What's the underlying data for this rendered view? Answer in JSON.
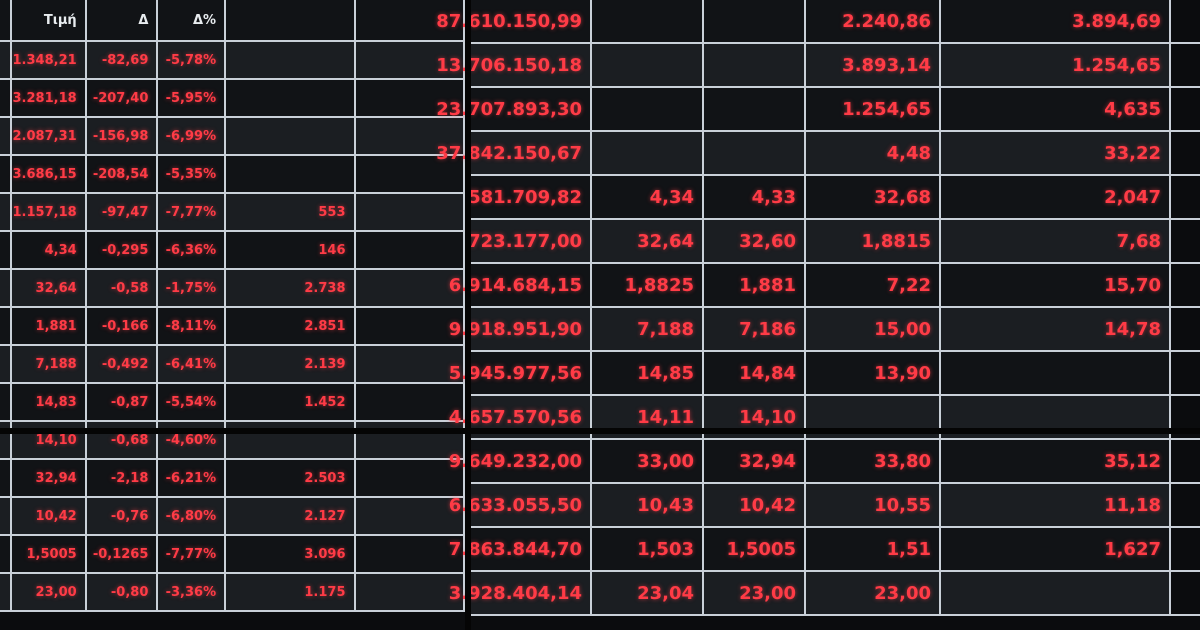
{
  "left_panel": {
    "headers": [
      "",
      "Τιμή",
      "Δ",
      "Δ%",
      "",
      ""
    ],
    "rows": [
      [
        "1.348,21",
        "-82,69",
        "-5,78%",
        ""
      ],
      [
        "3.281,18",
        "-207,40",
        "-5,95%",
        ""
      ],
      [
        "2.087,31",
        "-156,98",
        "-6,99%",
        ""
      ],
      [
        "3.686,15",
        "-208,54",
        "-5,35%",
        ""
      ],
      [
        "1.157,18",
        "-97,47",
        "-7,77%",
        "553"
      ],
      [
        "4,34",
        "-0,295",
        "-6,36%",
        "146"
      ],
      [
        "32,64",
        "-0,58",
        "-1,75%",
        "2.738"
      ],
      [
        "1,881",
        "-0,166",
        "-8,11%",
        "2.851"
      ],
      [
        "7,188",
        "-0,492",
        "-6,41%",
        "2.139"
      ],
      [
        "14,83",
        "-0,87",
        "-5,54%",
        "1.452"
      ],
      [
        "14,10",
        "-0,68",
        "-4,60%",
        ""
      ],
      [
        "32,94",
        "-2,18",
        "-6,21%",
        "2.503"
      ],
      [
        "10,42",
        "-0,76",
        "-6,80%",
        "2.127"
      ],
      [
        "1,5005",
        "-0,1265",
        "-7,77%",
        "3.096"
      ],
      [
        "23,00",
        "-0,80",
        "-3,36%",
        "1.175"
      ]
    ]
  },
  "right_panel": {
    "rows": [
      [
        "87.610.150,99",
        "",
        "",
        "2.240,86",
        "3.894,69"
      ],
      [
        "13.706.150,18",
        "",
        "",
        "3.893,14",
        "1.254,65"
      ],
      [
        "23.707.893,30",
        "",
        "",
        "1.254,65",
        "4,635"
      ],
      [
        "37.842.150,67",
        "",
        "",
        "4,48",
        "33,22"
      ],
      [
        "581.709,82",
        "4,34",
        "4,33",
        "32,68",
        "2,047"
      ],
      [
        "723.177,00",
        "32,64",
        "32,60",
        "1,8815",
        "7,68"
      ],
      [
        "6.914.684,15",
        "1,8825",
        "1,881",
        "7,22",
        "15,70"
      ],
      [
        "9.918.951,90",
        "7,188",
        "7,186",
        "15,00",
        "14,78"
      ],
      [
        "5.945.977,56",
        "14,85",
        "14,84",
        "13,90",
        ""
      ],
      [
        "4.657.570,56",
        "14,11",
        "14,10",
        "",
        ""
      ],
      [
        "9.649.232,00",
        "33,00",
        "32,94",
        "33,80",
        "35,12"
      ],
      [
        "6.633.055,50",
        "10,43",
        "10,42",
        "10,55",
        "11,18"
      ],
      [
        "7.863.844,70",
        "1,503",
        "1,5005",
        "1,51",
        "1,627"
      ],
      [
        "3.928.404,14",
        "23,04",
        "23,00",
        "23,00",
        ""
      ]
    ]
  },
  "colors": {
    "text": "#ff3b46",
    "grid": "#c9d0d8",
    "background": "#111316"
  }
}
